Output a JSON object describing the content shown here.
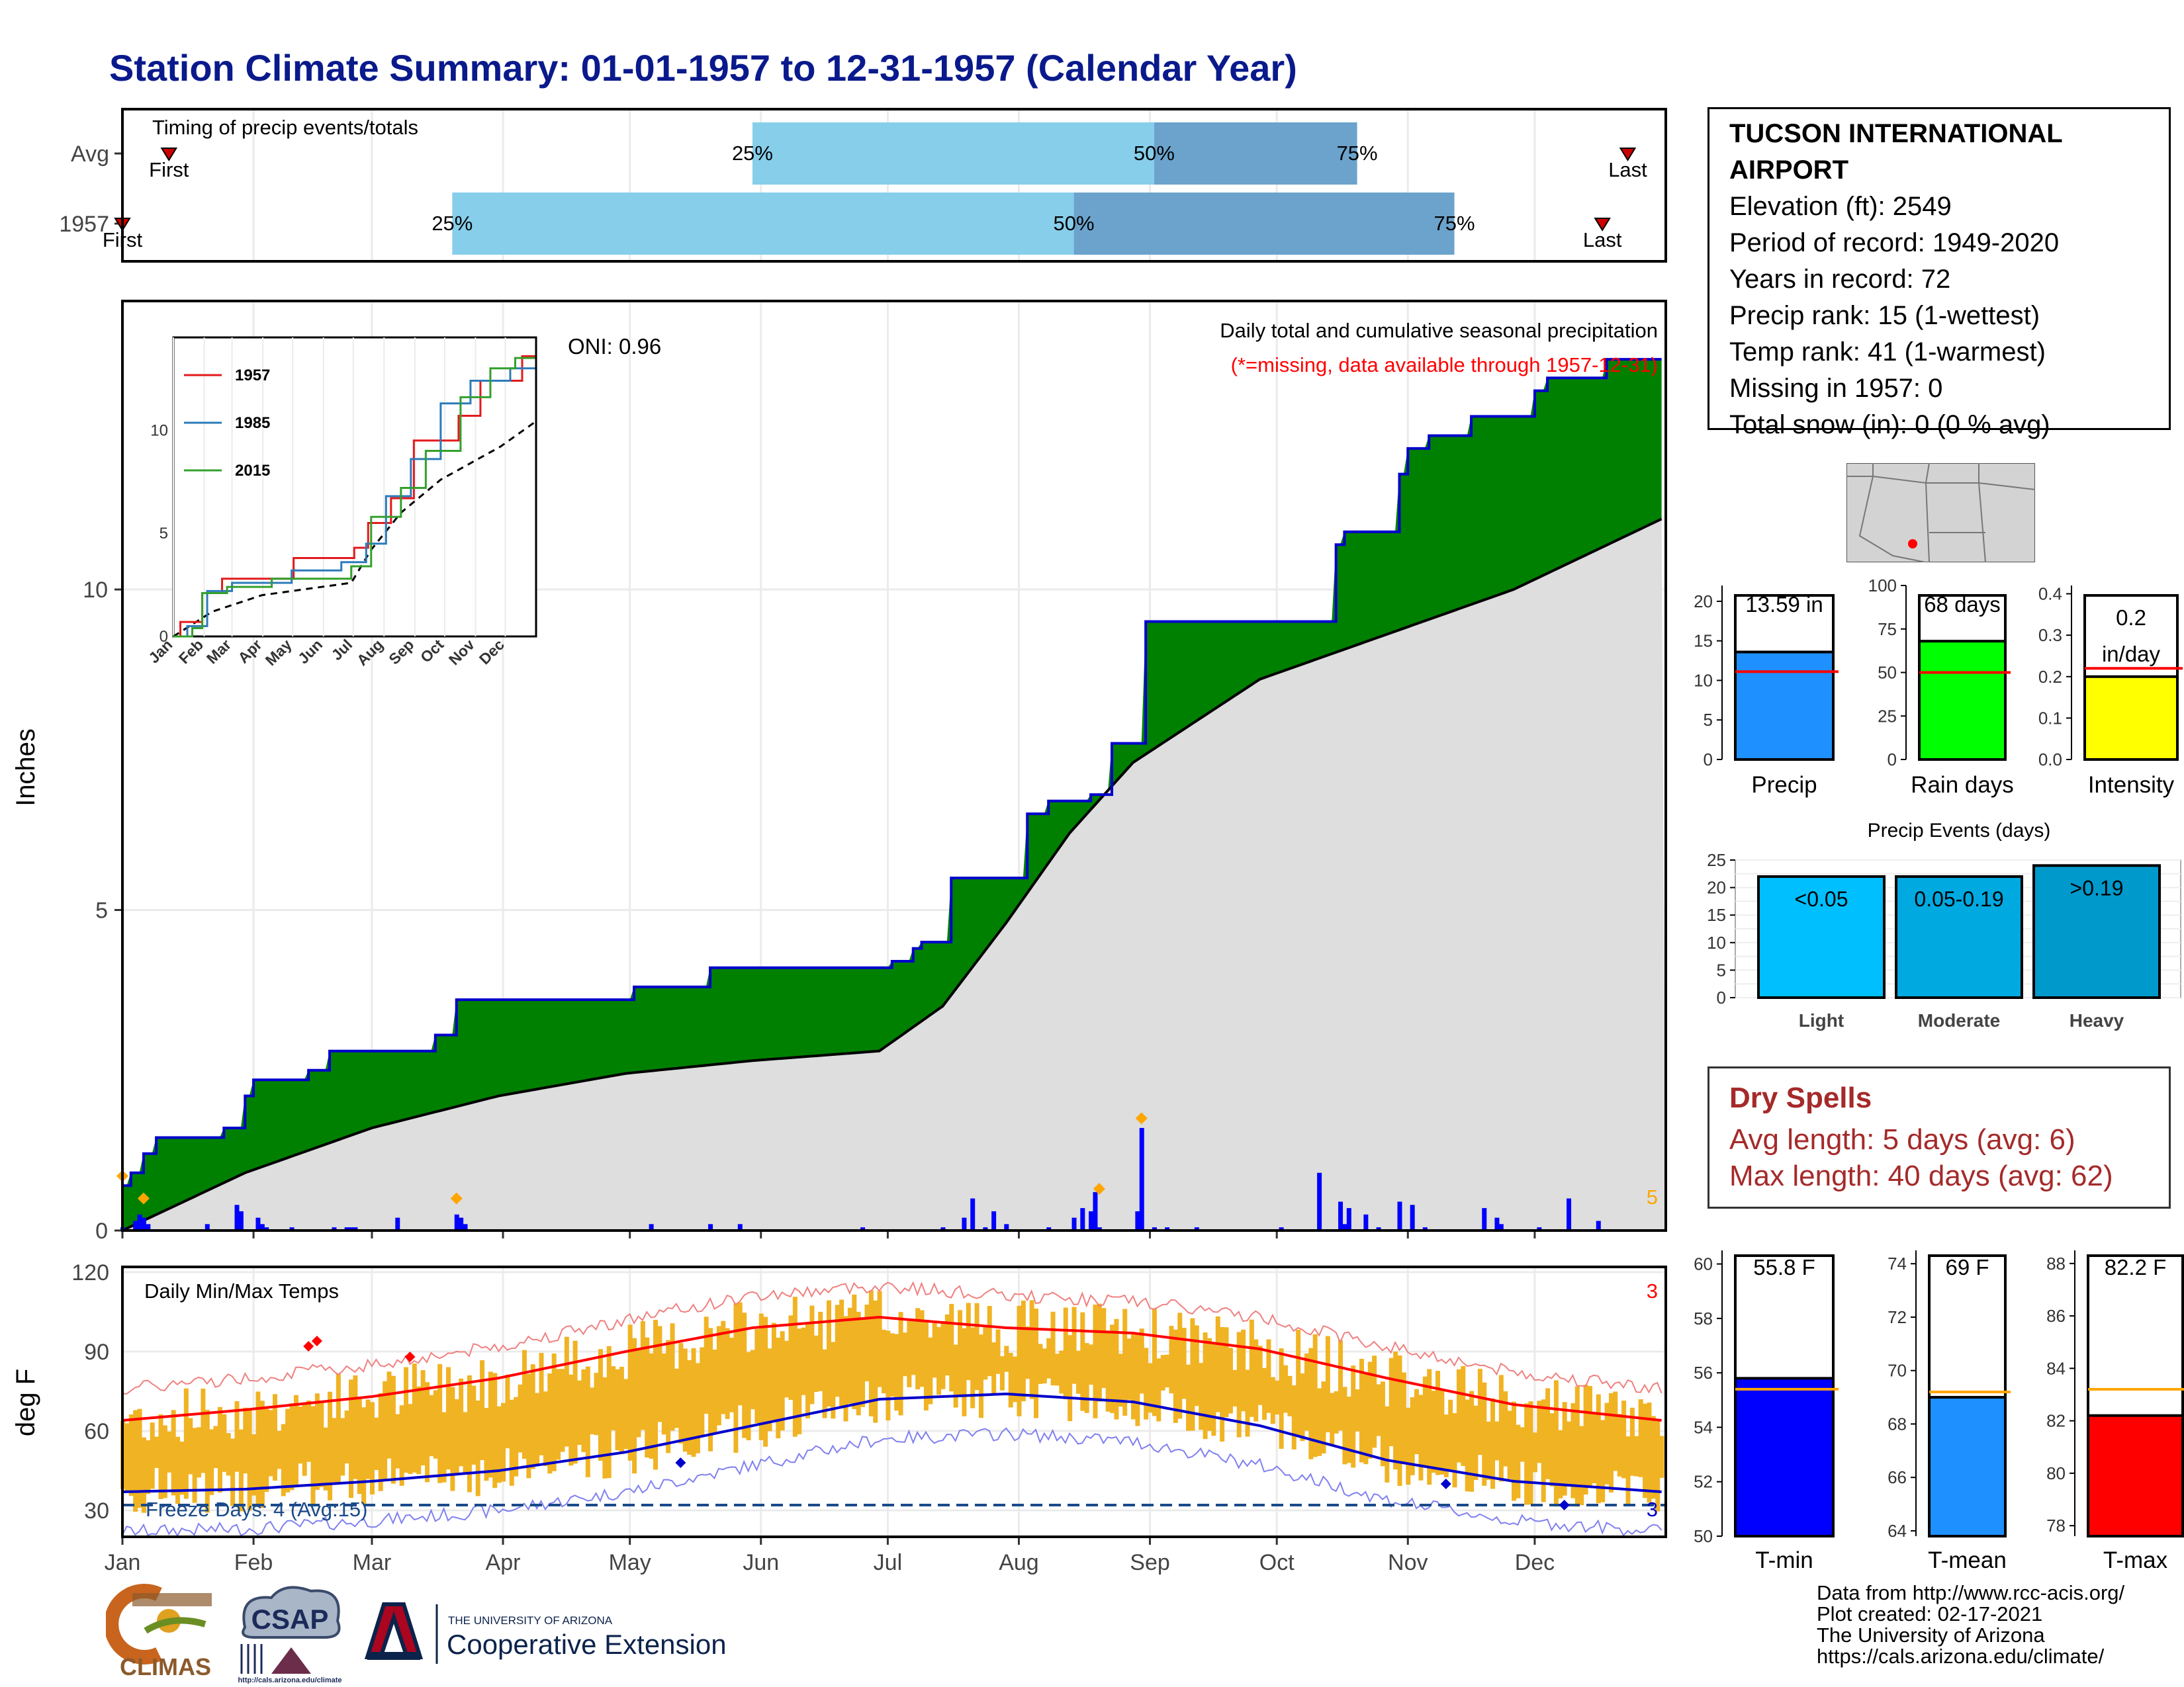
{
  "title": "Station Climate Summary: 01-01-1957 to 12-31-1957 (Calendar Year)",
  "timing": {
    "title": "Timing of precip events/totals",
    "rows": [
      {
        "label": "Avg",
        "first_label": "First",
        "first_day": 12,
        "p25_label": "25%",
        "p25": 150,
        "p50_label": "50%",
        "p50": 245,
        "p75_label": "75%",
        "p75": 293,
        "last_label": "Last",
        "last_day": 357
      },
      {
        "label": "1957",
        "first_label": "First",
        "first_day": 1,
        "p25_label": "25%",
        "p25": 79,
        "p50_label": "50%",
        "p50": 226,
        "p75_label": "75%",
        "p75": 316,
        "last_label": "Last",
        "last_day": 351
      }
    ],
    "colors": {
      "light": "#87ceeb",
      "dark": "#6ba3cc",
      "marker": "#cc0000"
    }
  },
  "station": {
    "name": "TUCSON INTERNATIONAL AIRPORT",
    "elevation": "Elevation (ft): 2549",
    "period": "Period of record: 1949-2020",
    "years": "Years in record: 72",
    "precip_rank": "Precip rank: 15 (1-wettest)",
    "temp_rank": "Temp rank: 41 (1-warmest)",
    "missing": "Missing in 1957: 0",
    "snow": "Total snow (in): 0 (0 % avg)"
  },
  "precip_panel": {
    "ylabel": "Inches",
    "yticks": [
      "0",
      "5",
      "10"
    ],
    "oni": "ONI: 0.96",
    "note1": "Daily total and cumulative seasonal precipitation",
    "note2": "(*=missing, data available through 1957-12-31)",
    "corner_count": "5",
    "colors": {
      "above": "#008000",
      "line": "#0000cc",
      "avg_fill": "#dedede",
      "bars": "#0000ff",
      "marker": "#ffa500"
    }
  },
  "inset": {
    "legend": [
      "1957",
      "1985",
      "2015"
    ],
    "legend_colors": [
      "#e31a1c",
      "#2b7bba",
      "#33a02c"
    ],
    "yticks": [
      "0",
      "5",
      "10"
    ],
    "months": [
      "Jan",
      "Feb",
      "Mar",
      "Apr",
      "May",
      "Jun",
      "Jul",
      "Aug",
      "Sep",
      "Oct",
      "Nov",
      "Dec"
    ]
  },
  "temp_panel": {
    "ylabel": "deg F",
    "yticks": [
      "30",
      "60",
      "90",
      "120"
    ],
    "title": "Daily Min/Max Temps",
    "freeze": "Freeze Days: 4 (Avg:15)",
    "max_count": "3",
    "min_count": "3",
    "months": [
      "Jan",
      "Feb",
      "Mar",
      "Apr",
      "May",
      "Jun",
      "Jul",
      "Aug",
      "Sep",
      "Oct",
      "Nov",
      "Dec"
    ]
  },
  "mini_bars": [
    {
      "label": "Precip",
      "value_text": "13.59 in",
      "value": 13.59,
      "avg": 11.1,
      "ymax": 22,
      "yticks": [
        "0",
        "5",
        "10",
        "15",
        "20"
      ],
      "tick_values": [
        0,
        5,
        10,
        15,
        20
      ],
      "color": "#1e90ff"
    },
    {
      "label": "Rain days",
      "value_text": "68 days",
      "value": 68,
      "avg": 50,
      "ymax": 100,
      "yticks": [
        "0",
        "25",
        "50",
        "75",
        "100"
      ],
      "tick_values": [
        0,
        25,
        50,
        75,
        100
      ],
      "color": "#00ff00"
    },
    {
      "label": "Intensity",
      "value_text": "0.2\nin/day",
      "value": 0.2,
      "avg": 0.22,
      "ymax": 0.42,
      "yticks": [
        "0.0",
        "0.1",
        "0.2",
        "0.3",
        "0.4"
      ],
      "tick_values": [
        0,
        0.1,
        0.2,
        0.3,
        0.4
      ],
      "color": "#ffff00"
    }
  ],
  "events": {
    "title": "Precip Events (days)",
    "yticks": [
      "0",
      "5",
      "10",
      "15",
      "20",
      "25"
    ],
    "bars": [
      {
        "name": "Light",
        "top": "<0.05",
        "value": 22,
        "color": "#00bfff"
      },
      {
        "name": "Moderate",
        "top": "0.05-0.19",
        "value": 22,
        "color": "#00a9e0"
      },
      {
        "name": "Heavy",
        "top": ">0.19",
        "value": 24,
        "color": "#0099cc"
      }
    ]
  },
  "dry_spells": {
    "title": "Dry Spells",
    "avg": "Avg length: 5 days (avg: 6)",
    "max": "Max length: 40 days (avg: 62)"
  },
  "temp_bars": [
    {
      "label": "T-min",
      "value_text": "55.8 F",
      "value": 55.8,
      "avg": 55.4,
      "ymin": 50,
      "ymax": 60.5,
      "yticks": [
        "50",
        "52",
        "54",
        "56",
        "58",
        "60"
      ],
      "tick_values": [
        50,
        52,
        54,
        56,
        58,
        60
      ],
      "color": "#0000ff"
    },
    {
      "label": "T-mean",
      "value_text": "69 F",
      "value": 69,
      "avg": 69.2,
      "ymin": 63.8,
      "ymax": 74.5,
      "yticks": [
        "64",
        "66",
        "68",
        "70",
        "72",
        "74"
      ],
      "tick_values": [
        64,
        66,
        68,
        70,
        72,
        74
      ],
      "color": "#1e90ff"
    },
    {
      "label": "T-max",
      "value_text": "82.2 F",
      "value": 82.2,
      "avg": 83.2,
      "ymin": 77.6,
      "ymax": 88.5,
      "yticks": [
        "78",
        "80",
        "82",
        "84",
        "86",
        "88"
      ],
      "tick_values": [
        78,
        80,
        82,
        84,
        86,
        88
      ],
      "color": "#ff0000"
    }
  ],
  "logos": {
    "climas": "CLIMAS",
    "csap": "CSAP",
    "csap_url": "http://cals.arizona.edu/climate",
    "ua_small": "THE UNIVERSITY OF ARIZONA",
    "ua_big": "Cooperative Extension"
  },
  "credits": [
    "Data from http://www.rcc-acis.org/",
    "Plot created: 02-17-2021",
    "The University of Arizona",
    "https://cals.arizona.edu/climate/"
  ],
  "chart_data": [
    {
      "type": "line",
      "title": "Daily total and cumulative seasonal precipitation",
      "ylabel": "Inches",
      "ylim": [
        0,
        14.5
      ],
      "xlabels": [
        "Jan",
        "Feb",
        "Mar",
        "Apr",
        "May",
        "Jun",
        "Jul",
        "Aug",
        "Sep",
        "Oct",
        "Nov",
        "Dec"
      ],
      "series": [
        {
          "name": "1957",
          "x_doy": [
            1,
            3,
            6,
            9,
            25,
            30,
            32,
            45,
            50,
            75,
            80,
            122,
            140,
            183,
            188,
            190,
            197,
            215,
            220,
            230,
            235,
            243,
            285,
            288,
            290,
            303,
            305,
            310,
            320,
            335,
            338,
            352,
            365
          ],
          "y": [
            0.7,
            0.9,
            1.2,
            1.45,
            1.6,
            2.1,
            2.35,
            2.5,
            2.8,
            3.05,
            3.6,
            3.8,
            4.1,
            4.2,
            4.4,
            4.5,
            5.5,
            6.5,
            6.7,
            6.8,
            7.6,
            9.5,
            9.5,
            10.7,
            10.9,
            11.8,
            12.2,
            12.4,
            12.7,
            13.1,
            13.3,
            13.59,
            13.59
          ]
        }
      ],
      "average_cumulative": {
        "x_doy": [
          1,
          30,
          60,
          90,
          120,
          150,
          180,
          195,
          210,
          225,
          240,
          270,
          300,
          330,
          365
        ],
        "y": [
          0.0,
          0.9,
          1.6,
          2.1,
          2.45,
          2.65,
          2.8,
          3.5,
          4.8,
          6.2,
          7.3,
          8.6,
          9.3,
          10.0,
          11.1
        ]
      },
      "daily_precip": {
        "x_doy": [
          1,
          4,
          5,
          6,
          7,
          21,
          28,
          29,
          33,
          34,
          35,
          41,
          51,
          54,
          55,
          56,
          66,
          80,
          81,
          82,
          126,
          140,
          147,
          176,
          195,
          200,
          202,
          205,
          207,
          210,
          220,
          226,
          228,
          230,
          231,
          232,
          241,
          242,
          245,
          248,
          255,
          275,
          284,
          289,
          290,
          291,
          295,
          298,
          303,
          306,
          309,
          323,
          326,
          327,
          336,
          343,
          350
        ],
        "y": [
          0.05,
          0.15,
          0.25,
          0.2,
          0.1,
          0.1,
          0.4,
          0.3,
          0.2,
          0.1,
          0.05,
          0.05,
          0.05,
          0.05,
          0.05,
          0.05,
          0.2,
          0.25,
          0.2,
          0.1,
          0.1,
          0.1,
          0.1,
          0.05,
          0.05,
          0.2,
          0.5,
          0.05,
          0.3,
          0.1,
          0.05,
          0.2,
          0.35,
          0.3,
          0.6,
          0.05,
          0.3,
          1.6,
          0.05,
          0.05,
          0.05,
          0.05,
          0.9,
          0.45,
          0.1,
          0.35,
          0.25,
          0.05,
          0.45,
          0.4,
          0.05,
          0.35,
          0.2,
          0.1,
          0.05,
          0.5,
          0.15
        ]
      }
    },
    {
      "type": "line",
      "title": "Daily Min/Max Temps",
      "ylabel": "deg F",
      "ylim": [
        20,
        122
      ],
      "max_avg": {
        "x_doy": [
          1,
          30,
          60,
          90,
          120,
          150,
          180,
          210,
          240,
          270,
          300,
          330,
          365
        ],
        "y": [
          64,
          68,
          73,
          80,
          90,
          99,
          103,
          99,
          97,
          91,
          80,
          70,
          64
        ]
      },
      "min_avg": {
        "x_doy": [
          1,
          30,
          60,
          90,
          120,
          150,
          180,
          210,
          240,
          270,
          300,
          330,
          365
        ],
        "y": [
          37,
          38,
          41,
          45,
          52,
          62,
          72,
          74,
          71,
          62,
          49,
          41,
          37
        ]
      },
      "freeze_line": 32
    }
  ]
}
